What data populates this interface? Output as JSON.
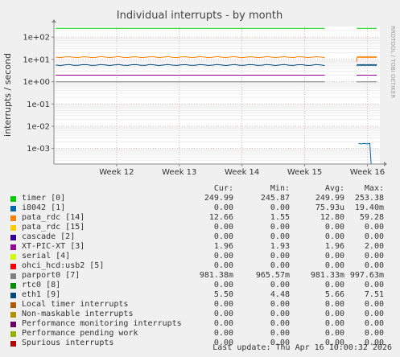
{
  "chart_data": {
    "type": "line",
    "title": "Individual interrupts - by month",
    "ylabel": "interrupts / second",
    "yscale": "log",
    "ylim": [
      0.0002,
      300
    ],
    "y_ticks": [
      {
        "value": 100,
        "label": "1e+02"
      },
      {
        "value": 10,
        "label": "1e+01"
      },
      {
        "value": 1,
        "label": "1e+00"
      },
      {
        "value": 0.1,
        "label": "1e-01"
      },
      {
        "value": 0.01,
        "label": "1e-02"
      },
      {
        "value": 0.001,
        "label": "1e-03"
      }
    ],
    "xlim": [
      0,
      5.2
    ],
    "x_ticks": [
      {
        "value": 1,
        "label": "Week 12"
      },
      {
        "value": 2,
        "label": "Week 13"
      },
      {
        "value": 3,
        "label": "Week 14"
      },
      {
        "value": 4,
        "label": "Week 15"
      },
      {
        "value": 5,
        "label": "Week 16"
      }
    ],
    "gap": [
      4.32,
      4.83
    ],
    "grid": true,
    "watermark": "RRDTOOL / TOBI OETIKER",
    "columns": [
      "Cur:",
      "Min:",
      "Avg:",
      "Max:"
    ],
    "series": [
      {
        "name": "timer [0]",
        "color": "#00cc00",
        "cur": "249.99",
        "min": "245.87",
        "avg": "249.99",
        "max": "253.38",
        "level": 250
      },
      {
        "name": "i8042 [1]",
        "color": "#0066b3",
        "cur": "0.00",
        "min": "0.00",
        "avg": "75.93u",
        "max": "19.40m",
        "level": null
      },
      {
        "name": "pata_rdc [14]",
        "color": "#ff8000",
        "cur": "12.66",
        "min": "1.55",
        "avg": "12.80",
        "max": "59.28",
        "level": 12.7
      },
      {
        "name": "pata_rdc [15]",
        "color": "#ffcc00",
        "cur": "0.00",
        "min": "0.00",
        "avg": "0.00",
        "max": "0.00",
        "level": null
      },
      {
        "name": "cascade [2]",
        "color": "#330099",
        "cur": "0.00",
        "min": "0.00",
        "avg": "0.00",
        "max": "0.00",
        "level": null
      },
      {
        "name": "XT-PIC-XT [3]",
        "color": "#990099",
        "cur": "1.96",
        "min": "1.93",
        "avg": "1.96",
        "max": "2.00",
        "level": 1.96
      },
      {
        "name": "serial [4]",
        "color": "#ccff00",
        "cur": "0.00",
        "min": "0.00",
        "avg": "0.00",
        "max": "0.00",
        "level": null
      },
      {
        "name": "ohci_hcd:usb2 [5]",
        "color": "#ff0000",
        "cur": "0.00",
        "min": "0.00",
        "avg": "0.00",
        "max": "0.00",
        "level": null
      },
      {
        "name": "parport0 [7]",
        "color": "#808080",
        "cur": "981.38m",
        "min": "965.57m",
        "avg": "981.33m",
        "max": "997.63m",
        "level": 0.981
      },
      {
        "name": "rtc0 [8]",
        "color": "#008f00",
        "cur": "0.00",
        "min": "0.00",
        "avg": "0.00",
        "max": "0.00",
        "level": null
      },
      {
        "name": "eth1 [9]",
        "color": "#00487d",
        "cur": "5.50",
        "min": "4.48",
        "avg": "5.66",
        "max": "7.51",
        "level": 5.6
      },
      {
        "name": "Local timer interrupts",
        "color": "#b35a00",
        "cur": "0.00",
        "min": "0.00",
        "avg": "0.00",
        "max": "0.00",
        "level": null
      },
      {
        "name": "Non-maskable interrupts",
        "color": "#b38f00",
        "cur": "0.00",
        "min": "0.00",
        "avg": "0.00",
        "max": "0.00",
        "level": null
      },
      {
        "name": "Performance monitoring interrupts",
        "color": "#6b006b",
        "cur": "0.00",
        "min": "0.00",
        "avg": "0.00",
        "max": "0.00",
        "level": null
      },
      {
        "name": "Performance pending work",
        "color": "#8fb300",
        "cur": "0.00",
        "min": "0.00",
        "avg": "0.00",
        "max": "0.00",
        "level": null
      },
      {
        "name": "Spurious interrupts",
        "color": "#b30000",
        "cur": "0.00",
        "min": "0.00",
        "avg": "0.00",
        "max": "0.00",
        "level": null
      }
    ],
    "spike": {
      "series": "i8042 [1]",
      "x": [
        4.86,
        4.9,
        4.95,
        5.0,
        5.04,
        5.06
      ],
      "y": [
        0.0017,
        0.0016,
        0.0017,
        0.0016,
        0.0017,
        0.0002
      ]
    }
  },
  "last_update": "Last update: Thu Apr 16 10:00:32 2026"
}
